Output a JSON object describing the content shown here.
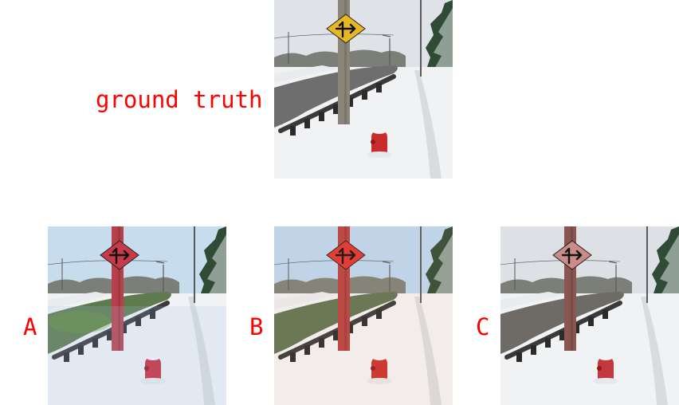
{
  "labels": {
    "ground_truth": "ground truth",
    "a": "A",
    "b": "B",
    "c": "C"
  },
  "panels": [
    {
      "id": "ground-truth",
      "variant": "gt",
      "sky": "#dfe3e8",
      "sign": "#e8b821",
      "pole": "#8b8478",
      "hydrant": "#c92c2c",
      "road": "#6e6e6e",
      "tint": "none"
    },
    {
      "id": "a",
      "variant": "a",
      "sky": "#c7dced",
      "sign": "#c63a4a",
      "pole": "#b6414b",
      "hydrant": "#c92c3c",
      "road": "#5f7a4e",
      "tint": "green-blue"
    },
    {
      "id": "b",
      "variant": "b",
      "sky": "#bcd6f0",
      "sign": "#e2332f",
      "pole": "#b8413f",
      "hydrant": "#c8302c",
      "road": "#5e7452",
      "tint": "warm"
    },
    {
      "id": "c",
      "variant": "c",
      "sky": "#dde0e5",
      "sign": "#c98c86",
      "pole": "#8a5650",
      "hydrant": "#c3383c",
      "road": "#6e6a66",
      "tint": "none"
    }
  ],
  "colors": {
    "label": "#ff0000",
    "snow": "#f1f2f4"
  }
}
